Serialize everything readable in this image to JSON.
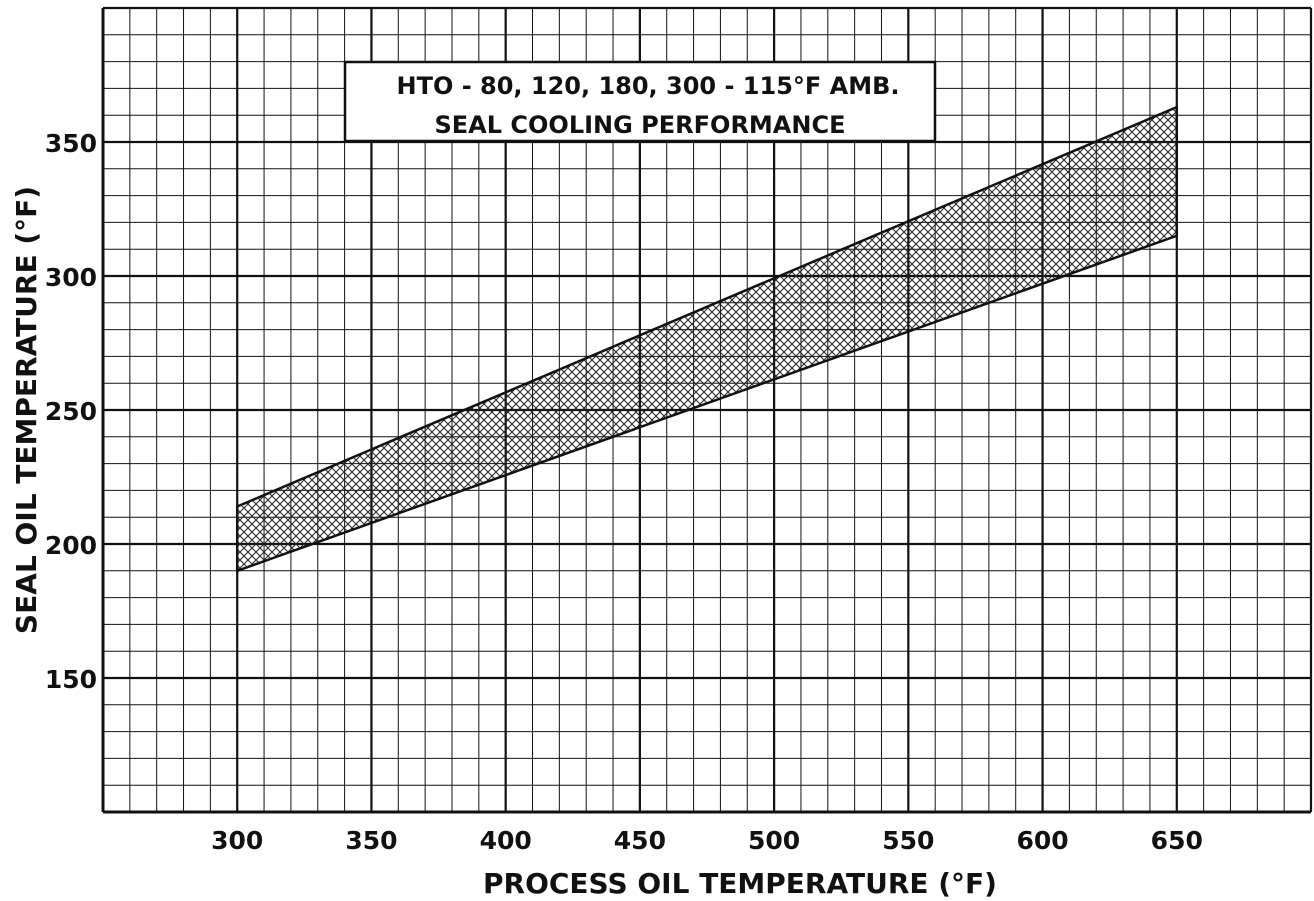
{
  "chart_data": {
    "type": "area",
    "title_lines": [
      "HTO - 80, 120, 180, 300 - 115°F AMB.",
      "SEAL COOLING PERFORMANCE"
    ],
    "xlabel": "PROCESS OIL TEMPERATURE (°F)",
    "ylabel": "SEAL OIL TEMPERATURE (°F)",
    "xlim": [
      250,
      700
    ],
    "ylim": [
      100,
      400
    ],
    "x_ticks": [
      300,
      350,
      400,
      450,
      500,
      550,
      600,
      650
    ],
    "y_ticks": [
      150,
      200,
      250,
      300,
      350
    ],
    "grid": true,
    "fill_pattern": "crosshatch",
    "band": {
      "x": [
        300,
        650
      ],
      "upper": [
        214,
        363
      ],
      "lower": [
        190,
        315
      ]
    }
  }
}
